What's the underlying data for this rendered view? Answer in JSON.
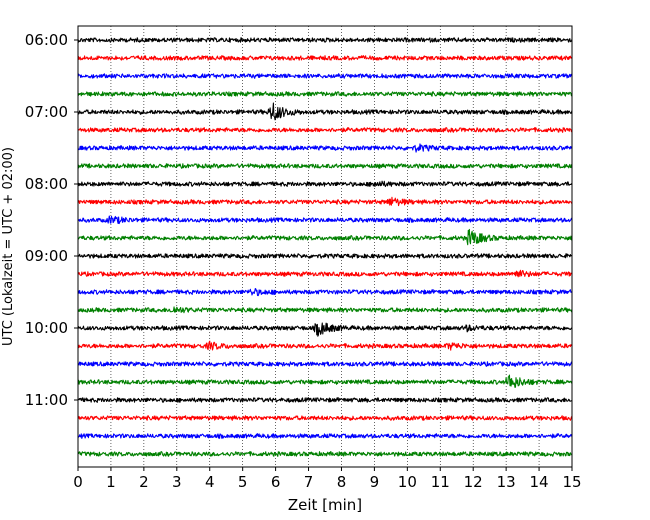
{
  "chart_data": {
    "type": "line",
    "title": "",
    "xlabel": "Zeit  [min]",
    "ylabel": "UTC (Lokalzeit = UTC + 02:00)",
    "xlim": [
      0,
      15
    ],
    "x_ticks": [
      0,
      1,
      2,
      3,
      4,
      5,
      6,
      7,
      8,
      9,
      10,
      11,
      12,
      13,
      14,
      15
    ],
    "y_tick_labels": [
      "06:00",
      "07:00",
      "08:00",
      "09:00",
      "10:00",
      "11:00"
    ],
    "grid": "vertical dotted lines at each minute",
    "legend": "none",
    "trace_colors": [
      "#000000",
      "#ff0000",
      "#0000ff",
      "#008000"
    ],
    "traces": [
      {
        "start": "06:00",
        "events": []
      },
      {
        "start": "06:15",
        "events": []
      },
      {
        "start": "06:30",
        "events": []
      },
      {
        "start": "06:45",
        "events": []
      },
      {
        "start": "07:00",
        "events": [
          {
            "t": 5.9,
            "amp": 9
          }
        ]
      },
      {
        "start": "07:15",
        "events": []
      },
      {
        "start": "07:30",
        "events": [
          {
            "t": 10.3,
            "amp": 2.5
          }
        ]
      },
      {
        "start": "07:45",
        "events": []
      },
      {
        "start": "08:00",
        "events": [
          {
            "t": 9.0,
            "amp": 2
          }
        ]
      },
      {
        "start": "08:15",
        "events": [
          {
            "t": 9.5,
            "amp": 3.5
          }
        ]
      },
      {
        "start": "08:30",
        "events": [
          {
            "t": 1.0,
            "amp": 3
          }
        ]
      },
      {
        "start": "08:45",
        "events": [
          {
            "t": 11.9,
            "amp": 8
          }
        ]
      },
      {
        "start": "09:00",
        "events": []
      },
      {
        "start": "09:15",
        "events": [
          {
            "t": 13.3,
            "amp": 3
          }
        ]
      },
      {
        "start": "09:30",
        "events": [
          {
            "t": 5.3,
            "amp": 2.5
          }
        ]
      },
      {
        "start": "09:45",
        "events": [
          {
            "t": 2.9,
            "amp": 2.5
          }
        ]
      },
      {
        "start": "10:00",
        "events": [
          {
            "t": 7.3,
            "amp": 7
          },
          {
            "t": 11.8,
            "amp": 2
          }
        ]
      },
      {
        "start": "10:15",
        "events": [
          {
            "t": 4.0,
            "amp": 3
          },
          {
            "t": 11.3,
            "amp": 2.5
          }
        ]
      },
      {
        "start": "10:30",
        "events": []
      },
      {
        "start": "10:45",
        "events": [
          {
            "t": 13.1,
            "amp": 7
          }
        ]
      },
      {
        "start": "11:00",
        "events": []
      },
      {
        "start": "11:15",
        "events": []
      },
      {
        "start": "11:30",
        "events": []
      },
      {
        "start": "11:45",
        "events": []
      }
    ]
  }
}
